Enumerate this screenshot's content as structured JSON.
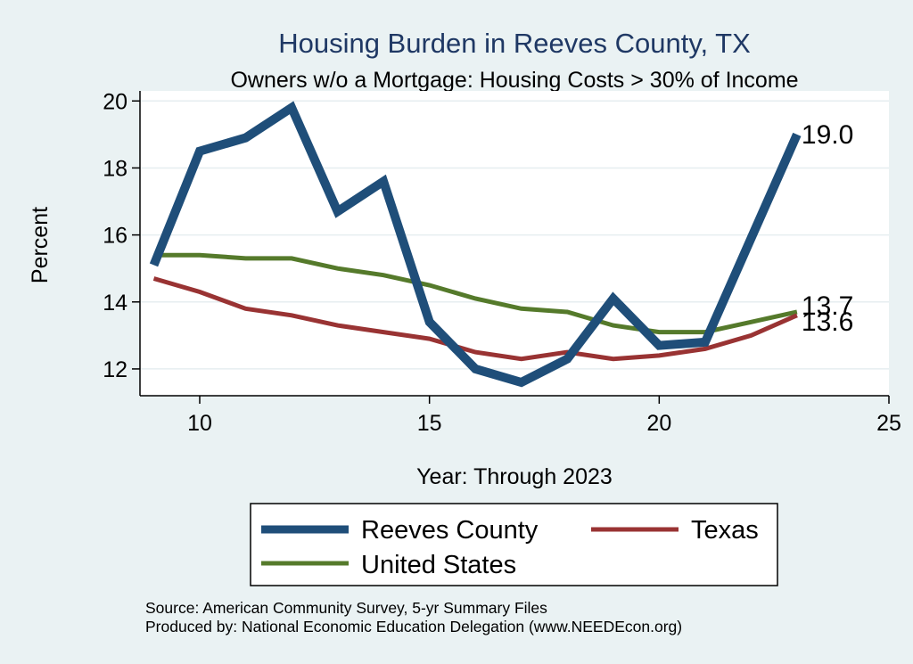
{
  "chart_data": {
    "type": "line",
    "title": "Housing Burden in Reeves County, TX",
    "subtitle": "Owners w/o a Mortgage: Housing Costs > 30% of Income",
    "xlabel": "Year: Through 2023",
    "ylabel": "Percent",
    "xlim": [
      8.7,
      25
    ],
    "ylim": [
      11.2,
      20.3
    ],
    "xticks": [
      10,
      15,
      20,
      25
    ],
    "yticks": [
      12,
      14,
      16,
      18,
      20
    ],
    "grid": true,
    "series": [
      {
        "name": "Reeves County",
        "color": "#1f4e79",
        "x": [
          9,
          10,
          11,
          12,
          13,
          14,
          15,
          16,
          17,
          18,
          19,
          20,
          21,
          22,
          23
        ],
        "values": [
          15.1,
          18.5,
          18.9,
          19.8,
          16.7,
          17.6,
          13.4,
          12.0,
          11.6,
          12.3,
          14.1,
          12.7,
          12.8,
          15.9,
          19.0
        ],
        "end_label": "19.0"
      },
      {
        "name": "Texas",
        "color": "#993333",
        "x": [
          9,
          10,
          11,
          12,
          13,
          14,
          15,
          16,
          17,
          18,
          19,
          20,
          21,
          22,
          23
        ],
        "values": [
          14.7,
          14.3,
          13.8,
          13.6,
          13.3,
          13.1,
          12.9,
          12.5,
          12.3,
          12.5,
          12.3,
          12.4,
          12.6,
          13.0,
          13.6
        ],
        "end_label": "13.6"
      },
      {
        "name": "United States",
        "color": "#557a2b",
        "x": [
          9,
          10,
          11,
          12,
          13,
          14,
          15,
          16,
          17,
          18,
          19,
          20,
          21,
          22,
          23
        ],
        "values": [
          15.4,
          15.4,
          15.3,
          15.3,
          15.0,
          14.8,
          14.5,
          14.1,
          13.8,
          13.7,
          13.3,
          13.1,
          13.1,
          13.4,
          13.7
        ],
        "end_label": "13.7"
      }
    ],
    "legend": {
      "placement": "bottom",
      "entries": [
        "Reeves County",
        "Texas",
        "United States"
      ]
    },
    "notes": [
      "Source: American Community Survey, 5-yr Summary Files",
      "Produced by: National Economic Education Delegation (www.NEEDEcon.org)"
    ]
  }
}
